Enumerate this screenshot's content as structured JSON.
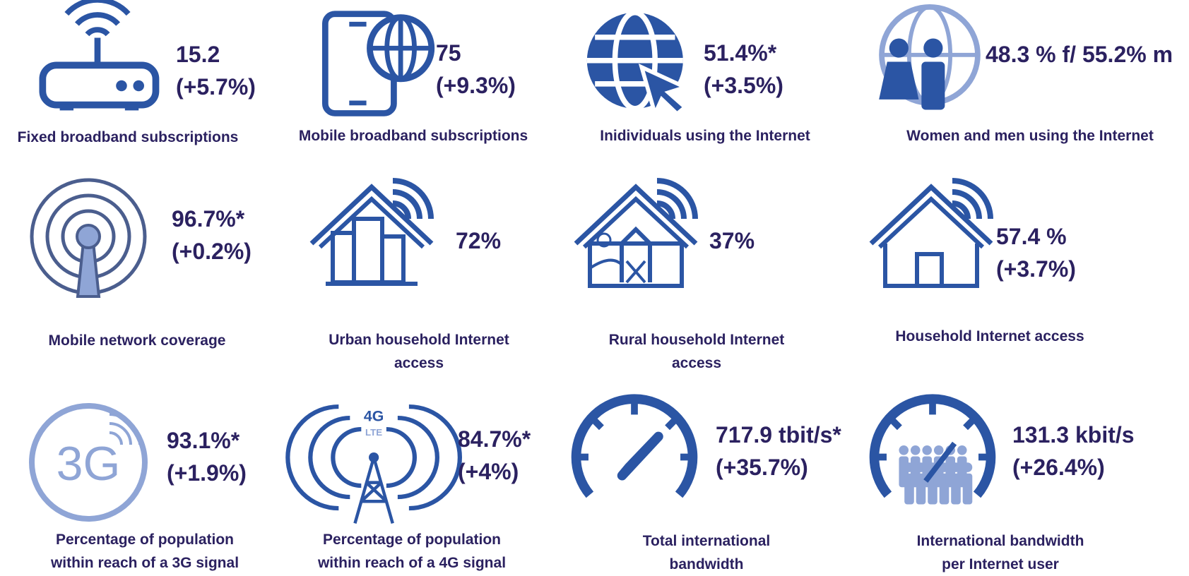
{
  "tiles": [
    {
      "value_lines": [
        "15.2",
        "(+5.7%)"
      ],
      "label_lines": [
        "Fixed broadband subscriptions"
      ]
    },
    {
      "value_lines": [
        "75",
        "(+9.3%)"
      ],
      "label_lines": [
        "Mobile broadband subscriptions"
      ]
    },
    {
      "value_lines": [
        "51.4%*",
        "(+3.5%)"
      ],
      "label_lines": [
        "Inidividuals using the Internet"
      ]
    },
    {
      "value_lines": [
        "48.3 % f/ 55.2% m"
      ],
      "label_lines": [
        "Women and men using the Internet"
      ]
    },
    {
      "value_lines": [
        "96.7%*",
        "(+0.2%)"
      ],
      "label_lines": [
        "Mobile network coverage"
      ]
    },
    {
      "value_lines": [
        "72%"
      ],
      "label_lines": [
        "Urban household Internet",
        "access"
      ]
    },
    {
      "value_lines": [
        "37%"
      ],
      "label_lines": [
        "Rural household Internet",
        "access"
      ]
    },
    {
      "value_lines": [
        "57.4 %",
        "(+3.7%)"
      ],
      "label_lines": [
        "Household Internet access"
      ]
    },
    {
      "value_lines": [
        "93.1%*",
        "(+1.9%)"
      ],
      "label_lines": [
        "Percentage of population",
        "within reach of a 3G signal"
      ],
      "icon_text": [
        "3G"
      ]
    },
    {
      "value_lines": [
        "84.7%*",
        "(+4%)"
      ],
      "label_lines": [
        "Percentage of population",
        "within reach of a 4G signal"
      ],
      "icon_text": [
        "4G",
        "LTE"
      ]
    },
    {
      "value_lines": [
        "717.9 tbit/s*",
        "(+35.7%)"
      ],
      "label_lines": [
        "Total international",
        "bandwidth"
      ]
    },
    {
      "value_lines": [
        "131.3 kbit/s",
        "(+26.4%)"
      ],
      "label_lines": [
        "International bandwidth",
        "per Internet user"
      ]
    }
  ]
}
